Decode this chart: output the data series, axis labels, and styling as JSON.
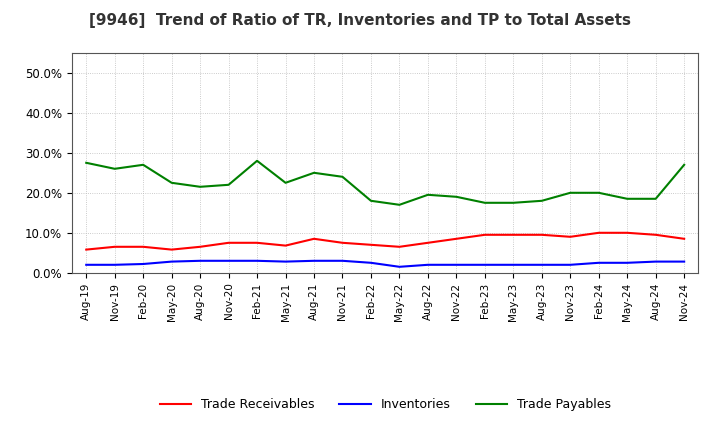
{
  "title": "[9946]  Trend of Ratio of TR, Inventories and TP to Total Assets",
  "labels": [
    "Aug-19",
    "Nov-19",
    "Feb-20",
    "May-20",
    "Aug-20",
    "Nov-20",
    "Feb-21",
    "May-21",
    "Aug-21",
    "Nov-21",
    "Feb-22",
    "May-22",
    "Aug-22",
    "Nov-22",
    "Feb-23",
    "May-23",
    "Aug-23",
    "Nov-23",
    "Feb-24",
    "May-24",
    "Aug-24",
    "Nov-24"
  ],
  "trade_receivables": [
    5.8,
    6.5,
    6.5,
    5.8,
    6.5,
    7.5,
    7.5,
    6.8,
    8.5,
    7.5,
    7.0,
    6.5,
    7.5,
    8.5,
    9.5,
    9.5,
    9.5,
    9.0,
    10.0,
    10.0,
    9.5,
    8.5
  ],
  "inventories": [
    2.0,
    2.0,
    2.2,
    2.8,
    3.0,
    3.0,
    3.0,
    2.8,
    3.0,
    3.0,
    2.5,
    1.5,
    2.0,
    2.0,
    2.0,
    2.0,
    2.0,
    2.0,
    2.5,
    2.5,
    2.8,
    2.8
  ],
  "trade_payables": [
    27.5,
    26.0,
    27.0,
    22.5,
    21.5,
    22.0,
    28.0,
    22.5,
    25.0,
    24.0,
    18.0,
    17.0,
    19.5,
    19.0,
    17.5,
    17.5,
    18.0,
    20.0,
    20.0,
    18.5,
    18.5,
    27.0
  ],
  "tr_color": "#FF0000",
  "inv_color": "#0000FF",
  "tp_color": "#008000",
  "ylim": [
    0,
    55
  ],
  "yticks": [
    0,
    10,
    20,
    30,
    40,
    50
  ],
  "ytick_labels": [
    "0.0%",
    "10.0%",
    "20.0%",
    "30.0%",
    "40.0%",
    "50.0%"
  ],
  "background_color": "#FFFFFF",
  "grid_color": "#BBBBBB",
  "legend_items": [
    "Trade Receivables",
    "Inventories",
    "Trade Payables"
  ]
}
